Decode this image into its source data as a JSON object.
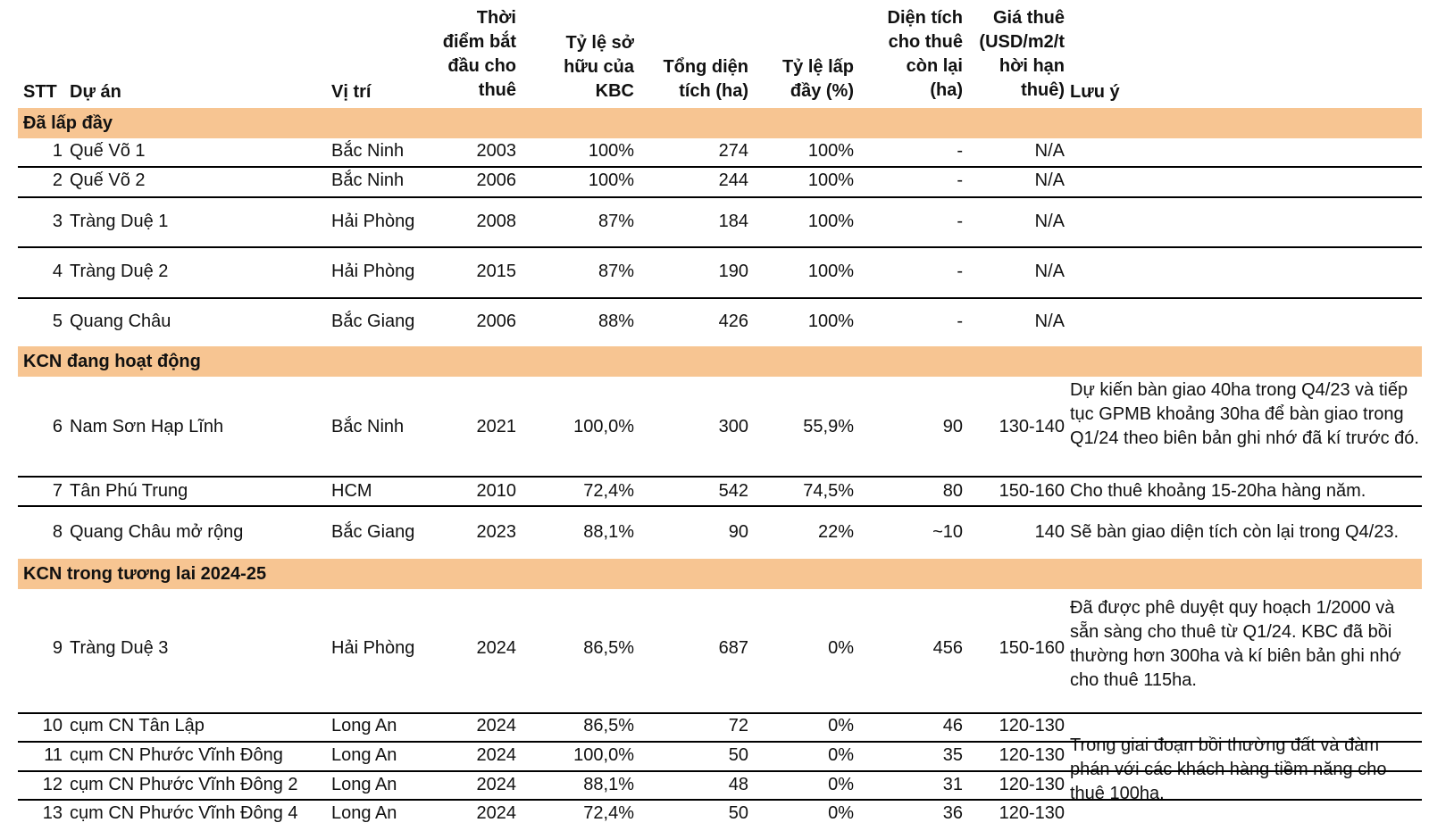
{
  "headers": {
    "stt": "STT",
    "du_an": "Dự án",
    "vi_tri": "Vị trí",
    "thoi_diem": "Thời\nđiểm bắt\nđầu cho\nthuê",
    "ty_le_so_huu": "Tỷ lệ sở\nhữu của\nKBC",
    "tong_dien_tich": "Tổng diện\ntích (ha)",
    "ty_le_lap_day": "Tỷ lệ lấp\nđầy (%)",
    "dien_tich_con_lai": "Diện tích\ncho thuê\ncòn lại\n(ha)",
    "gia_thue": "Giá thuê\n(USD/m2/t\nhời hạn\nthuê)",
    "luu_y": "Lưu ý"
  },
  "sections": [
    {
      "title": "Đã lấp đầy",
      "rows": [
        {
          "stt": "1",
          "name": "Quế Võ 1",
          "location": "Bắc Ninh",
          "year": "2003",
          "ownership": "100%",
          "area": "274",
          "occupancy": "100%",
          "remaining": "-",
          "price": "N/A",
          "note": ""
        },
        {
          "stt": "2",
          "name": "Quế Võ 2",
          "location": "Bắc Ninh",
          "year": "2006",
          "ownership": "100%",
          "area": "244",
          "occupancy": "100%",
          "remaining": "-",
          "price": "N/A",
          "note": ""
        },
        {
          "stt": "3",
          "name": "Tràng Duệ 1",
          "location": "Hải Phòng",
          "year": "2008",
          "ownership": "87%",
          "area": "184",
          "occupancy": "100%",
          "remaining": "-",
          "price": "N/A",
          "note": ""
        },
        {
          "stt": "4",
          "name": "Tràng Duệ 2",
          "location": "Hải Phòng",
          "year": "2015",
          "ownership": "87%",
          "area": "190",
          "occupancy": "100%",
          "remaining": "-",
          "price": "N/A",
          "note": ""
        },
        {
          "stt": "5",
          "name": "Quang Châu",
          "location": "Bắc Giang",
          "year": "2006",
          "ownership": "88%",
          "area": "426",
          "occupancy": "100%",
          "remaining": "-",
          "price": "N/A",
          "note": ""
        }
      ]
    },
    {
      "title": "KCN đang hoạt động",
      "rows": [
        {
          "stt": "6",
          "name": "Nam Sơn Hạp Lĩnh",
          "location": "Bắc Ninh",
          "year": "2021",
          "ownership": "100,0%",
          "area": "300",
          "occupancy": "55,9%",
          "remaining": "90",
          "price": "130-140",
          "note": "Dự kiến bàn giao 40ha trong Q4/23 và tiếp tục GPMB khoảng 30ha để bàn giao trong Q1/24 theo biên bản ghi nhớ đã kí trước đó."
        },
        {
          "stt": "7",
          "name": "Tân Phú Trung",
          "location": "HCM",
          "year": "2010",
          "ownership": "72,4%",
          "area": "542",
          "occupancy": "74,5%",
          "remaining": "80",
          "price": "150-160",
          "note": "Cho thuê khoảng 15-20ha hàng năm."
        },
        {
          "stt": "8",
          "name": "Quang Châu mở rộng",
          "location": "Bắc Giang",
          "year": "2023",
          "ownership": "88,1%",
          "area": "90",
          "occupancy": "22%",
          "remaining": "~10",
          "price": "140",
          "note": "Sẽ bàn giao diện tích còn lại trong Q4/23."
        }
      ]
    },
    {
      "title": "KCN trong tương lai 2024-25",
      "rows": [
        {
          "stt": "9",
          "name": "Tràng Duệ 3",
          "location": "Hải Phòng",
          "year": "2024",
          "ownership": "86,5%",
          "area": "687",
          "occupancy": "0%",
          "remaining": "456",
          "price": "150-160",
          "note": "Đã được phê duyệt quy hoạch 1/2000 và sẵn sàng cho thuê từ Q1/24. KBC đã bồi thường hơn 300ha và kí biên bản ghi nhớ cho thuê 115ha."
        },
        {
          "stt": "10",
          "name": "cụm CN Tân Lập",
          "location": "Long An",
          "year": "2024",
          "ownership": "86,5%",
          "area": "72",
          "occupancy": "0%",
          "remaining": "46",
          "price": "120-130",
          "note": ""
        },
        {
          "stt": "11",
          "name": "cụm CN Phước Vĩnh Đông",
          "location": "Long An",
          "year": "2024",
          "ownership": "100,0%",
          "area": "50",
          "occupancy": "0%",
          "remaining": "35",
          "price": "120-130",
          "note": ""
        },
        {
          "stt": "12",
          "name": "cụm CN Phước Vĩnh Đông 2",
          "location": "Long An",
          "year": "2024",
          "ownership": "88,1%",
          "area": "48",
          "occupancy": "0%",
          "remaining": "31",
          "price": "120-130",
          "note": ""
        },
        {
          "stt": "13",
          "name": "cụm CN Phước Vĩnh Đông 4",
          "location": "Long An",
          "year": "2024",
          "ownership": "72,4%",
          "area": "50",
          "occupancy": "0%",
          "remaining": "36",
          "price": "120-130",
          "note": ""
        }
      ],
      "group_note": "Trong giai đoạn bồi thường đất và đàm phán với các khách hàng tiềm năng cho thuê 100ha."
    }
  ],
  "colors": {
    "section_band": "#f7c592",
    "rule": "#000000",
    "text": "#111111"
  }
}
